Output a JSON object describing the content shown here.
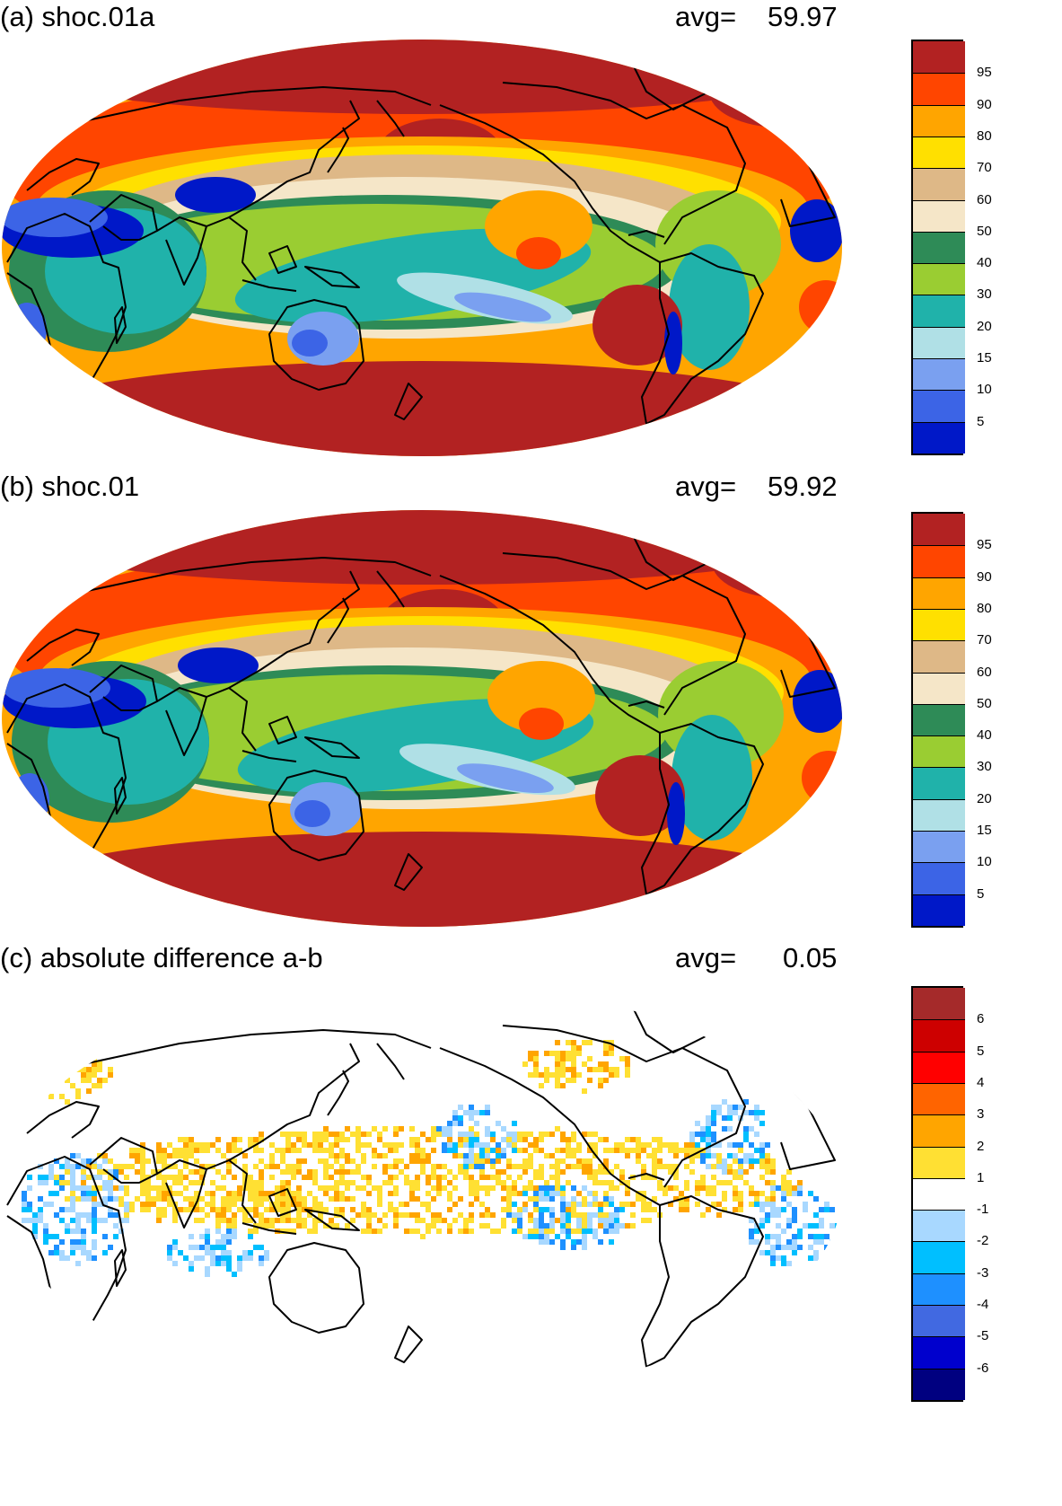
{
  "colors": {
    "main_levels": [
      "#0018c8",
      "#3c64e6",
      "#7aa0f0",
      "#b0e0e6",
      "#20b2aa",
      "#9acd32",
      "#2e8b57",
      "#f5e6c8",
      "#deb887",
      "#ffe000",
      "#ffa500",
      "#ff4500",
      "#b22222"
    ],
    "diff_levels": [
      "#000080",
      "#0000cd",
      "#4169e1",
      "#1e90ff",
      "#00bfff",
      "#a8d8ff",
      "#ffffff",
      "#ffe033",
      "#ffa500",
      "#ff6400",
      "#ff0000",
      "#cd0000",
      "#a52a2a"
    ],
    "coast": "#000000"
  },
  "panels": [
    {
      "title": "(a) shoc.01a",
      "avg_label": "avg=",
      "avg_value": "59.97",
      "colorbar_labels": [
        "95",
        "90",
        "80",
        "70",
        "60",
        "50",
        "40",
        "30",
        "20",
        "15",
        "10",
        "5"
      ]
    },
    {
      "title": "(b) shoc.01",
      "avg_label": "avg=",
      "avg_value": "59.92",
      "colorbar_labels": [
        "95",
        "90",
        "80",
        "70",
        "60",
        "50",
        "40",
        "30",
        "20",
        "15",
        "10",
        "5"
      ]
    },
    {
      "title": "(c) absolute difference a-b",
      "avg_label": "avg=",
      "avg_value": "0.05",
      "colorbar_labels": [
        "6",
        "5",
        "4",
        "3",
        "2",
        "1",
        "-1",
        "-2",
        "-3",
        "-4",
        "-5",
        "-6"
      ]
    }
  ]
}
